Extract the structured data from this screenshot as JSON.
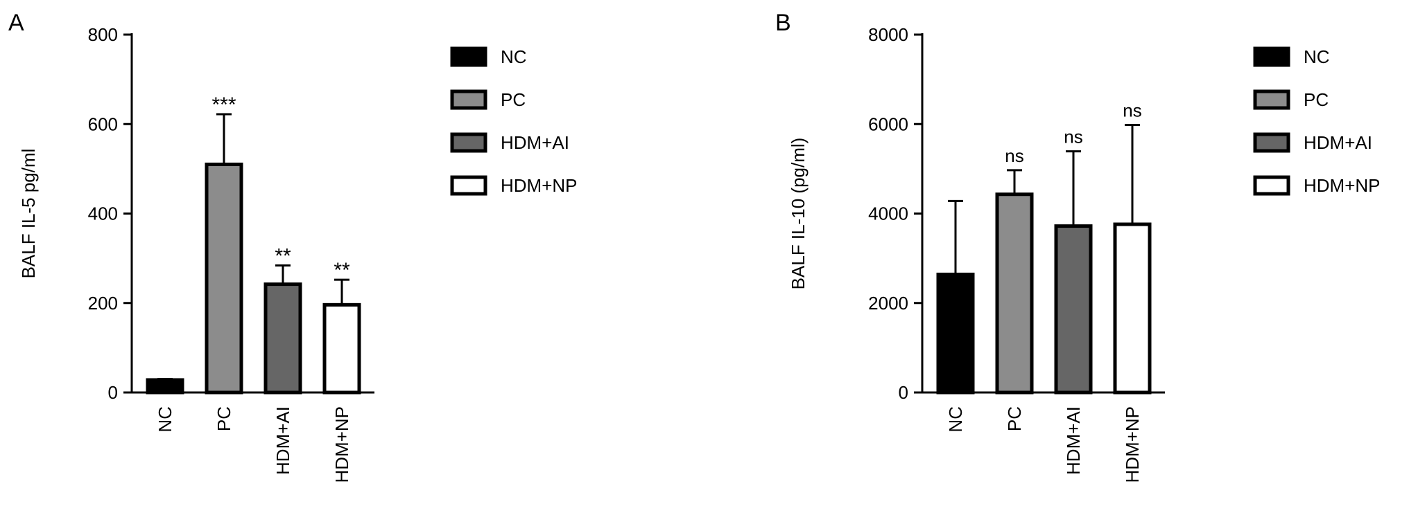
{
  "chart_data": [
    {
      "panel_label": "A",
      "type": "bar",
      "ylabel": "BALF IL-5 pg/ml",
      "ylim": [
        0,
        800
      ],
      "yticks": [
        0,
        200,
        400,
        600,
        800
      ],
      "categories": [
        "NC",
        "PC",
        "HDM+AI",
        "HDM+NP"
      ],
      "values": [
        28,
        510,
        242,
        196
      ],
      "error": [
        2,
        112,
        42,
        56
      ],
      "annotations": [
        "",
        "***",
        "**",
        "**"
      ],
      "colors": [
        "#000000",
        "#8c8c8c",
        "#666666",
        "#ffffff"
      ],
      "legend": [
        "NC",
        "PC",
        "HDM+AI",
        "HDM+NP"
      ],
      "legend_position": "right",
      "grid": false
    },
    {
      "panel_label": "B",
      "type": "bar",
      "ylabel": "BALF IL-10 (pg/ml)",
      "ylim": [
        0,
        8000
      ],
      "yticks": [
        0,
        2000,
        4000,
        6000,
        8000
      ],
      "categories": [
        "NC",
        "PC",
        "HDM+AI",
        "HDM+NP"
      ],
      "values": [
        2640,
        4430,
        3720,
        3760
      ],
      "error": [
        1640,
        540,
        1670,
        2220
      ],
      "annotations": [
        "",
        "ns",
        "ns",
        "ns"
      ],
      "colors": [
        "#000000",
        "#8c8c8c",
        "#666666",
        "#ffffff"
      ],
      "legend": [
        "NC",
        "PC",
        "HDM+AI",
        "HDM+NP"
      ],
      "legend_position": "right",
      "grid": false
    }
  ]
}
